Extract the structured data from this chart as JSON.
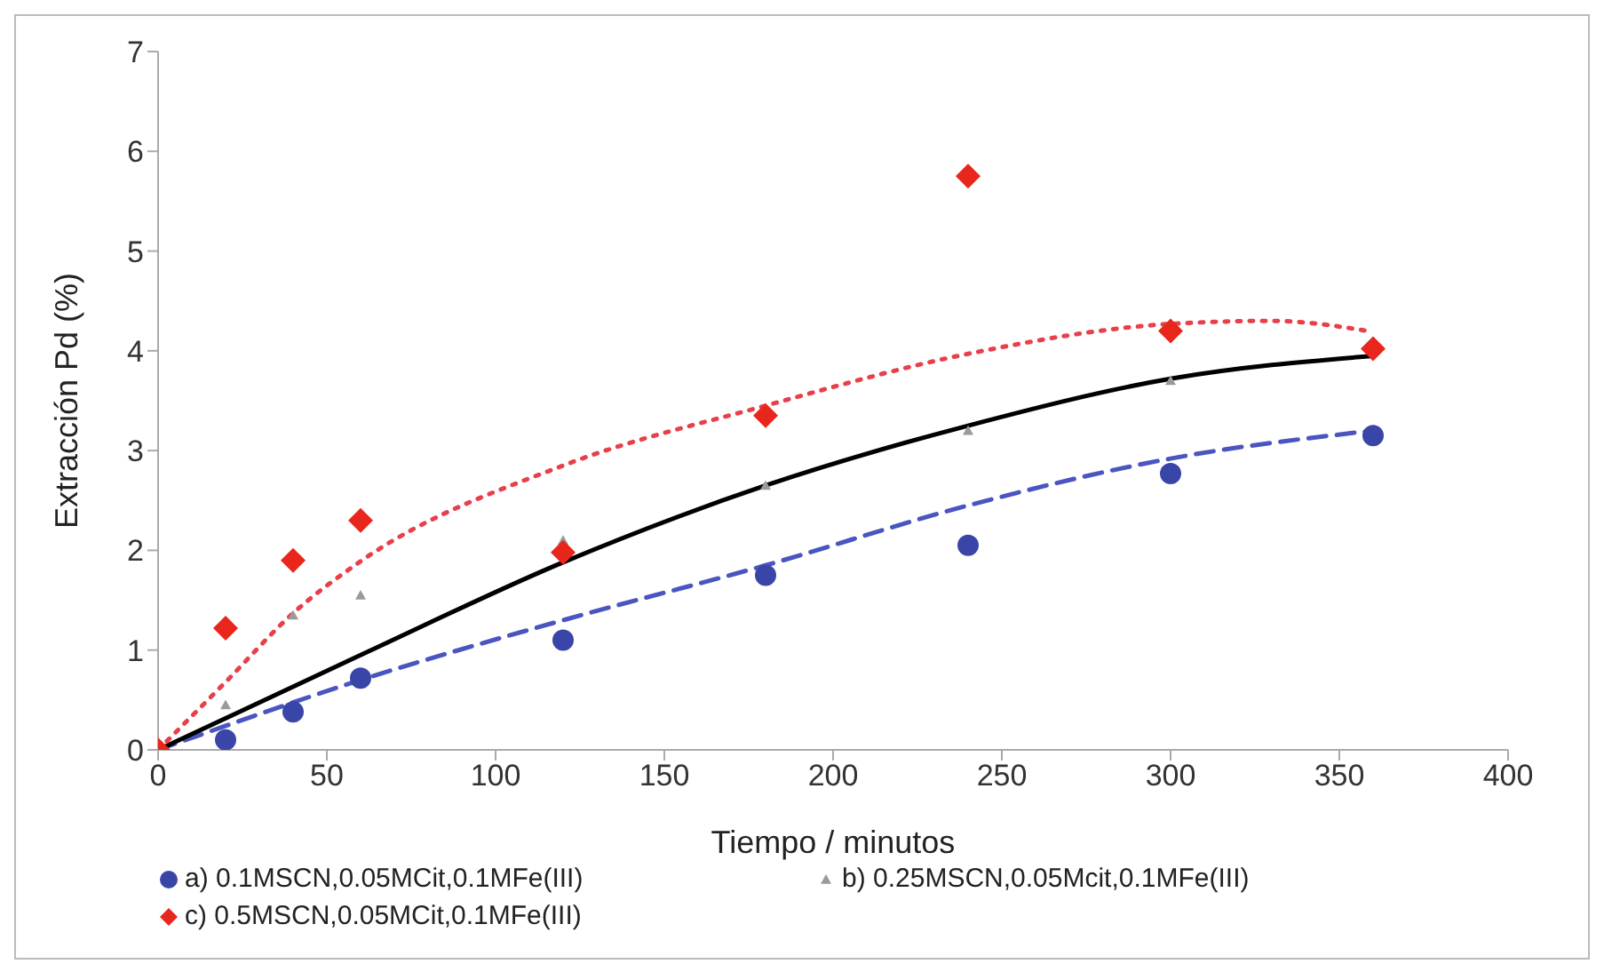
{
  "chart_data": {
    "type": "scatter",
    "xlabel": "Tiempo / minutos",
    "ylabel": "Extracción Pd (%)",
    "xlim": [
      0,
      400
    ],
    "xticks": [
      0,
      50,
      100,
      150,
      200,
      250,
      300,
      350,
      400
    ],
    "ylim": [
      0,
      7
    ],
    "yticks": [
      0,
      1,
      2,
      3,
      4,
      5,
      6,
      7
    ],
    "legend": "bottom",
    "series": [
      {
        "name": "a) 0.1MSCN,0.05MCit,0.1MFe(III)",
        "marker": "circle",
        "color": "#3a45a8",
        "x": [
          20,
          40,
          60,
          120,
          180,
          240,
          300,
          360
        ],
        "values": [
          0.1,
          0.38,
          0.72,
          1.1,
          1.75,
          2.05,
          2.77,
          3.15
        ]
      },
      {
        "name": "b) 0.25MSCN,0.05Mcit,0.1MFe(III)",
        "marker": "triangle",
        "color": "#9a9a9a",
        "x": [
          20,
          40,
          60,
          120,
          180,
          240,
          300
        ],
        "values": [
          0.45,
          1.35,
          1.55,
          2.1,
          2.65,
          3.2,
          3.7
        ]
      },
      {
        "name": "c) 0.5MSCN,0.05MCit,0.1MFe(III)",
        "marker": "diamond",
        "color": "#e8261c",
        "x": [
          0,
          20,
          40,
          60,
          120,
          180,
          240,
          300,
          360
        ],
        "values": [
          0,
          1.22,
          1.9,
          2.3,
          1.98,
          3.35,
          5.75,
          4.2,
          4.02
        ]
      },
      {
        "type": "line",
        "line_style": "dashed",
        "color": "#4a55c0",
        "x": [
          0,
          60,
          120,
          180,
          240,
          300,
          360
        ],
        "values": [
          0,
          0.7,
          1.3,
          1.85,
          2.45,
          2.92,
          3.2
        ]
      },
      {
        "type": "line",
        "line_style": "solid",
        "color": "#000000",
        "x": [
          0,
          60,
          120,
          180,
          240,
          300,
          360
        ],
        "values": [
          0,
          0.95,
          1.88,
          2.65,
          3.25,
          3.72,
          3.95
        ]
      },
      {
        "type": "line",
        "line_style": "dotted",
        "color": "#e8404a",
        "x": [
          0,
          20,
          40,
          60,
          120,
          180,
          240,
          300,
          330,
          360
        ],
        "values": [
          0,
          0.68,
          1.37,
          1.89,
          2.85,
          3.45,
          3.97,
          4.27,
          4.3,
          4.19
        ]
      }
    ]
  }
}
